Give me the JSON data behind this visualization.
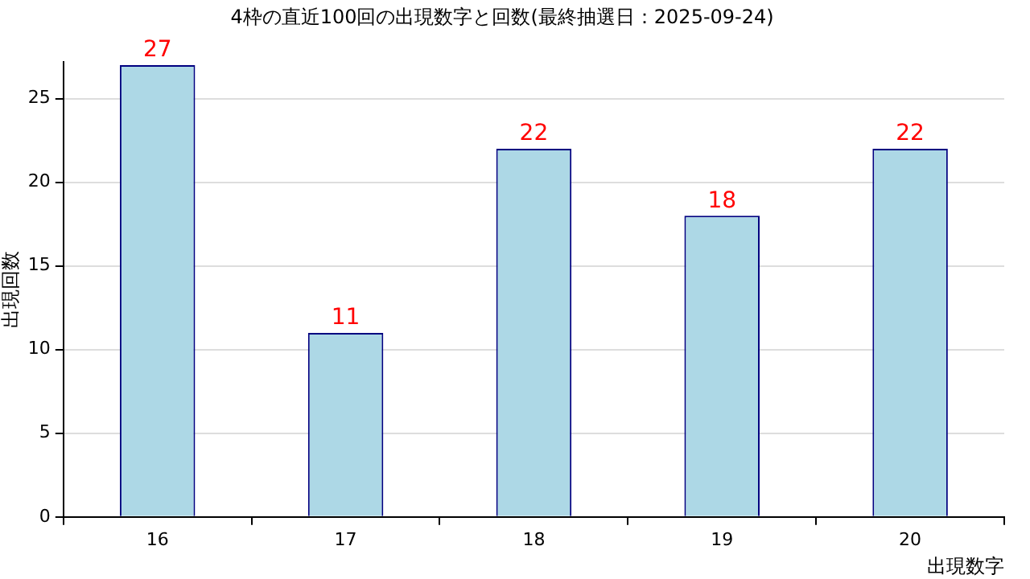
{
  "chart_data": {
    "type": "bar",
    "title": "4枠の直近100回の出現数字と回数(最終抽選日：2025-09-24)",
    "xlabel": "出現数字",
    "ylabel": "出現回数",
    "categories": [
      "16",
      "17",
      "18",
      "19",
      "20"
    ],
    "values": [
      27,
      11,
      22,
      18,
      22
    ],
    "color": "#add8e6",
    "ylim": [
      0,
      27.2
    ],
    "yticks": [
      0,
      5,
      10,
      15,
      20,
      25
    ],
    "grid": "y",
    "data_labels": true,
    "legend": false
  }
}
